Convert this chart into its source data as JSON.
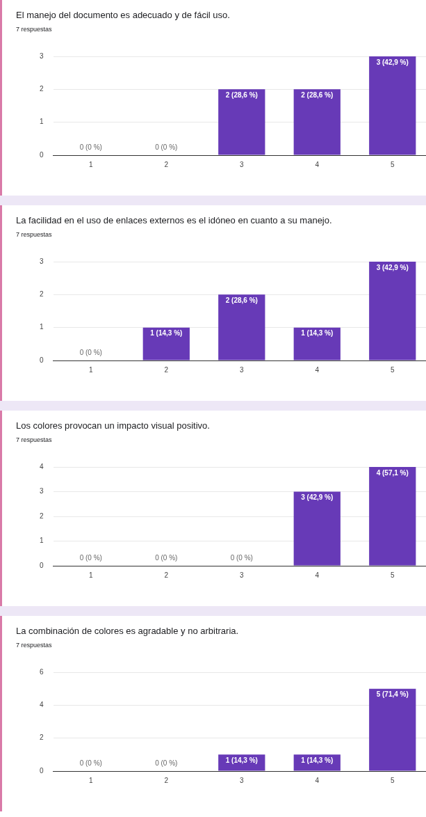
{
  "chart_data": [
    {
      "type": "bar",
      "title": "El manejo del documento es adecuado y de fácil uso.",
      "subtitle": "7 respuestas",
      "categories": [
        "1",
        "2",
        "3",
        "4",
        "5"
      ],
      "values": [
        0,
        0,
        2,
        2,
        3
      ],
      "value_labels": [
        "0 (0 %)",
        "0 (0 %)",
        "2 (28,6 %)",
        "2 (28,6 %)",
        "3 (42,9 %)"
      ],
      "color": "#673ab7",
      "ylim": [
        0,
        3
      ],
      "yticks": [
        0,
        1,
        2,
        3
      ],
      "grid": "y"
    },
    {
      "type": "bar",
      "title": "La facilidad en el uso de enlaces externos es el idóneo en cuanto a su manejo.",
      "subtitle": "7 respuestas",
      "categories": [
        "1",
        "2",
        "3",
        "4",
        "5"
      ],
      "values": [
        0,
        1,
        2,
        1,
        3
      ],
      "value_labels": [
        "0 (0 %)",
        "1 (14,3 %)",
        "2 (28,6 %)",
        "1 (14,3 %)",
        "3 (42,9 %)"
      ],
      "color": "#673ab7",
      "ylim": [
        0,
        3
      ],
      "yticks": [
        0,
        1,
        2,
        3
      ],
      "grid": "y"
    },
    {
      "type": "bar",
      "title": "Los colores provocan un impacto visual positivo.",
      "subtitle": "7 respuestas",
      "categories": [
        "1",
        "2",
        "3",
        "4",
        "5"
      ],
      "values": [
        0,
        0,
        0,
        3,
        4
      ],
      "value_labels": [
        "0 (0 %)",
        "0 (0 %)",
        "0 (0 %)",
        "3 (42,9 %)",
        "4 (57,1 %)"
      ],
      "color": "#673ab7",
      "ylim": [
        0,
        4
      ],
      "yticks": [
        0,
        1,
        2,
        3,
        4
      ],
      "grid": "y"
    },
    {
      "type": "bar",
      "title": "La combinación de colores es agradable y no arbitraria.",
      "subtitle": "7 respuestas",
      "categories": [
        "1",
        "2",
        "3",
        "4",
        "5"
      ],
      "values": [
        0,
        0,
        1,
        1,
        5
      ],
      "value_labels": [
        "0 (0 %)",
        "0 (0 %)",
        "1 (14,3 %)",
        "1 (14,3 %)",
        "5 (71,4 %)"
      ],
      "color": "#673ab7",
      "ylim": [
        0,
        6
      ],
      "yticks": [
        0,
        2,
        4,
        6
      ],
      "grid": "y"
    }
  ]
}
